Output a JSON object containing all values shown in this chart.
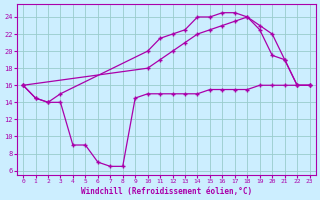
{
  "xlabel": "Windchill (Refroidissement éolien,°C)",
  "bg_color": "#cceeff",
  "line_color": "#aa00aa",
  "grid_color": "#99cccc",
  "xlim": [
    -0.5,
    23.5
  ],
  "ylim": [
    5.5,
    25.5
  ],
  "yticks": [
    6,
    8,
    10,
    12,
    14,
    16,
    18,
    20,
    22,
    24
  ],
  "xticks": [
    0,
    1,
    2,
    3,
    4,
    5,
    6,
    7,
    8,
    9,
    10,
    11,
    12,
    13,
    14,
    15,
    16,
    17,
    18,
    19,
    20,
    21,
    22,
    23
  ],
  "line1_x": [
    0,
    1,
    2,
    3,
    4,
    5,
    6,
    7,
    8,
    9,
    10,
    11,
    12,
    13,
    14,
    15,
    16,
    17,
    18,
    19,
    20,
    21,
    22,
    23
  ],
  "line1_y": [
    16,
    14.5,
    14,
    14,
    9,
    9,
    7,
    6.5,
    6.5,
    14.5,
    15,
    15,
    15,
    15,
    15,
    15.5,
    15.5,
    15.5,
    15.5,
    16,
    16,
    16,
    16,
    16
  ],
  "line2_x": [
    0,
    1,
    2,
    3,
    10,
    11,
    12,
    13,
    14,
    15,
    16,
    17,
    18,
    19,
    20,
    21,
    22,
    23
  ],
  "line2_y": [
    16,
    14.5,
    14,
    15,
    20,
    21.5,
    22,
    22.5,
    24,
    24,
    24.5,
    24.5,
    24,
    22.5,
    19.5,
    19,
    16,
    16
  ],
  "line3_x": [
    0,
    10,
    11,
    12,
    13,
    14,
    15,
    16,
    17,
    18,
    19,
    20,
    21,
    22,
    23
  ],
  "line3_y": [
    16,
    18,
    19,
    20,
    21,
    22,
    22.5,
    23,
    23.5,
    24,
    23,
    22,
    19,
    16,
    16
  ]
}
